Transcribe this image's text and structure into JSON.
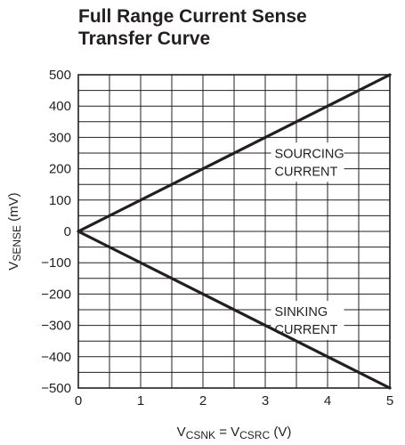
{
  "chart_data": {
    "type": "line",
    "title_lines": [
      "Full Range Current Sense",
      "Transfer Curve"
    ],
    "xlabel": {
      "parts": [
        [
          "V",
          ""
        ],
        [
          "CSNK",
          "sub"
        ],
        [
          " = V",
          ""
        ],
        [
          "CSRC",
          "sub"
        ],
        [
          " (V)",
          ""
        ]
      ]
    },
    "ylabel": {
      "parts": [
        [
          "V",
          ""
        ],
        [
          "SENSE",
          "sub"
        ],
        [
          " (mV)",
          ""
        ]
      ]
    },
    "xlim": [
      0,
      5
    ],
    "ylim": [
      -500,
      500
    ],
    "x_ticks": [
      0,
      1,
      2,
      3,
      4,
      5
    ],
    "y_ticks": [
      500,
      400,
      300,
      200,
      100,
      0,
      -100,
      -200,
      -300,
      -400,
      -500
    ],
    "x_tick_labels": [
      "0",
      "1",
      "2",
      "3",
      "4",
      "5"
    ],
    "y_tick_labels": [
      "500",
      "400",
      "300",
      "200",
      "100",
      "0",
      "−100",
      "−200",
      "−300",
      "−400",
      "−500"
    ],
    "grid": true,
    "series": [
      {
        "x": [
          0,
          5
        ],
        "y": [
          0,
          500
        ]
      },
      {
        "x": [
          0,
          5
        ],
        "y": [
          0,
          -500
        ]
      }
    ],
    "annotations": [
      {
        "lines": [
          "SOURCING",
          "CURRENT"
        ],
        "x": 3.15,
        "y": 235
      },
      {
        "lines": [
          "SINKING",
          "CURRENT"
        ],
        "x": 3.15,
        "y": -270
      }
    ]
  }
}
